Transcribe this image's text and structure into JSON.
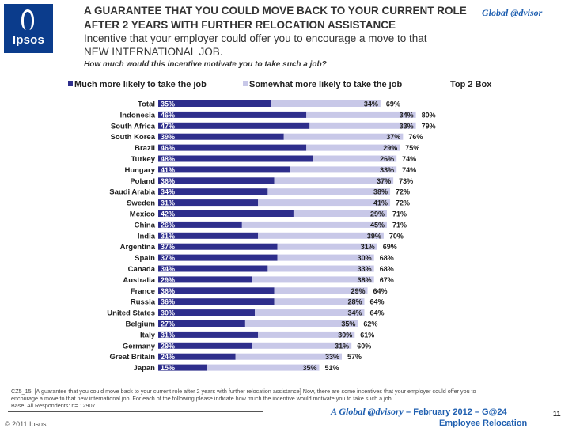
{
  "header": {
    "logo_text": "Ipsos",
    "title_line1": "A GUARANTEE THAT YOU COULD MOVE BACK TO YOUR CURRENT ROLE",
    "title_line2": "AFTER 2 YEARS WITH FURTHER RELOCATION ASSISTANCE",
    "subtitle_line1": "Incentive that your employer could offer you to encourage a move to that",
    "subtitle_line2": "NEW INTERNATIONAL JOB.",
    "question": "How much would this incentive motivate you to take such a job?",
    "brand": "Global @dvisor"
  },
  "footer": {
    "footnote_line1": "CZ5_15. [A guarantee that you could move back to your current role after 2 years with further relocation assistance] Now, there are some incentives that your employer could offer you to",
    "footnote_line2": "encourage a move to that new international job. For each of the following please indicate how much the incentive would motivate you to take such a job:",
    "footnote_line3": "Base: All Respondents: n= 12907",
    "copyright": "© 2011 Ipsos",
    "brand_name": "A Global @dvisory",
    "brand_date": " – February 2012 – G@24",
    "brand_sub": "Employee Relocation",
    "page_number": "11"
  },
  "colors": {
    "series1": "#2e2e8c",
    "series2": "#c8c8e8"
  },
  "chart_data": {
    "type": "bar",
    "orientation": "horizontal",
    "stacked": true,
    "categories": [
      "Total",
      "Indonesia",
      "South Africa",
      "South Korea",
      "Brazil",
      "Turkey",
      "Hungary",
      "Poland",
      "Saudi Arabia",
      "Sweden",
      "Mexico",
      "China",
      "India",
      "Argentina",
      "Spain",
      "Canada",
      "Australia",
      "France",
      "Russia",
      "United States",
      "Belgium",
      "Italy",
      "Germany",
      "Great Britain",
      "Japan"
    ],
    "series": [
      {
        "name": "Much more likely to take the job",
        "values": [
          35,
          46,
          47,
          39,
          46,
          48,
          41,
          36,
          34,
          31,
          42,
          26,
          31,
          37,
          37,
          34,
          29,
          36,
          36,
          30,
          27,
          31,
          29,
          24,
          15
        ]
      },
      {
        "name": "Somewhat more likely to take the job",
        "values": [
          34,
          34,
          33,
          37,
          29,
          26,
          33,
          37,
          38,
          41,
          29,
          45,
          39,
          31,
          30,
          33,
          38,
          29,
          28,
          34,
          35,
          30,
          31,
          33,
          35
        ]
      },
      {
        "name": "Top 2 Box",
        "values": [
          69,
          80,
          79,
          76,
          75,
          74,
          74,
          73,
          72,
          72,
          71,
          71,
          70,
          69,
          68,
          68,
          67,
          64,
          64,
          64,
          62,
          61,
          60,
          57,
          51
        ]
      }
    ],
    "value_suffix": "%",
    "legend_position": "top",
    "grid": false
  }
}
